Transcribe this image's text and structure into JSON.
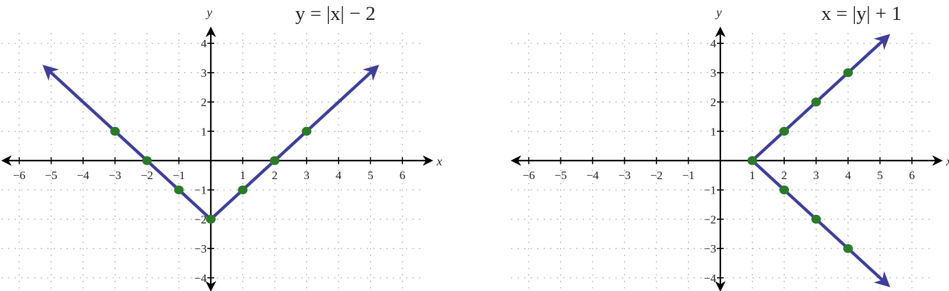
{
  "chart_data": [
    {
      "type": "line",
      "title": "y = |x| − 2",
      "title_parts": {
        "lhs": "y",
        "eq": " = ",
        "abs": "x",
        "rest": " − 2"
      },
      "xlabel": "x",
      "ylabel": "y",
      "xlim": [
        -6.5,
        6.5
      ],
      "ylim": [
        -4.4,
        4.4
      ],
      "x_ticks": [
        -6,
        -5,
        -4,
        -3,
        -2,
        -1,
        1,
        2,
        3,
        4,
        5,
        6
      ],
      "y_ticks": [
        -4,
        -3,
        -2,
        -1,
        1,
        2,
        3,
        4
      ],
      "grid": true,
      "line_color": "#3f3f9a",
      "point_color": "#2a7a2a",
      "line": [
        [
          -5.2,
          3.2
        ],
        [
          0,
          -2
        ],
        [
          5.2,
          3.2
        ]
      ],
      "arrows": "both-ends",
      "points": [
        [
          -3,
          1
        ],
        [
          -2,
          0
        ],
        [
          -1,
          -1
        ],
        [
          0,
          -2
        ],
        [
          1,
          -1
        ],
        [
          2,
          0
        ],
        [
          3,
          1
        ]
      ]
    },
    {
      "type": "line",
      "title": "x = |y| + 1",
      "title_parts": {
        "lhs": "x",
        "eq": " = ",
        "abs": "y",
        "rest": " + 1"
      },
      "xlabel": "x",
      "ylabel": "y",
      "xlim": [
        -6.5,
        6.5
      ],
      "ylim": [
        -4.4,
        4.4
      ],
      "x_ticks": [
        -6,
        -5,
        -4,
        -3,
        -2,
        -1,
        1,
        2,
        3,
        4,
        5,
        6
      ],
      "y_ticks": [
        -4,
        -3,
        -2,
        -1,
        1,
        2,
        3,
        4
      ],
      "grid": true,
      "line_color": "#3f3f9a",
      "point_color": "#2a7a2a",
      "line": [
        [
          5.25,
          4.25
        ],
        [
          1,
          0
        ],
        [
          5.25,
          -4.25
        ]
      ],
      "arrows": "both-ends",
      "points": [
        [
          1,
          0
        ],
        [
          2,
          1
        ],
        [
          3,
          2
        ],
        [
          4,
          3
        ],
        [
          2,
          -1
        ],
        [
          3,
          -2
        ],
        [
          4,
          -3
        ]
      ]
    }
  ]
}
